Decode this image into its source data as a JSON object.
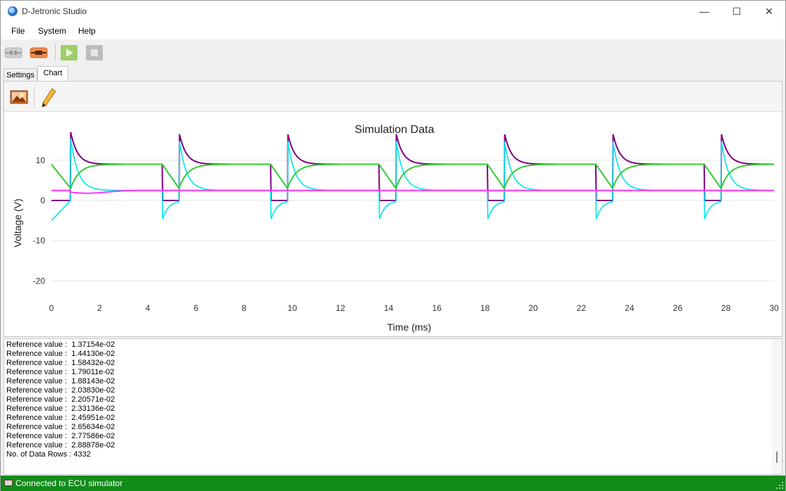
{
  "app": {
    "title": "D-Jetronic Studio"
  },
  "window_controls": {
    "minimize": "—",
    "maximize": "☐",
    "close": "✕"
  },
  "menu": {
    "items": [
      "File",
      "System",
      "Help"
    ]
  },
  "toolbar": {
    "buttons": [
      {
        "icon": "disconnect-icon",
        "enabled": false
      },
      {
        "icon": "connect-icon",
        "enabled": true
      },
      {
        "icon": "play-icon",
        "enabled": true
      },
      {
        "icon": "stop-icon",
        "enabled": false
      }
    ]
  },
  "tabs": {
    "items": [
      "Settings",
      "Chart"
    ],
    "active": "Chart"
  },
  "chart_toolbar": {
    "buttons": [
      {
        "icon": "image-icon"
      },
      {
        "icon": "pencil-icon"
      }
    ]
  },
  "chart_data": {
    "type": "line",
    "title": "Simulation Data",
    "xlabel": "Time (ms)",
    "ylabel": "Voltage (V)",
    "xlim": [
      0,
      30
    ],
    "ylim": [
      -25,
      18
    ],
    "xticks": [
      0,
      2,
      4,
      6,
      8,
      10,
      12,
      14,
      16,
      18,
      20,
      22,
      24,
      26,
      28,
      30
    ],
    "yticks": [
      10,
      0,
      -10,
      -20
    ],
    "grid": true,
    "legend": "none",
    "pulse_starts": [
      0.8,
      5.3,
      9.8,
      14.3,
      18.8,
      23.3,
      27.8
    ],
    "series": [
      {
        "color": "#800080",
        "description_points": [
          [
            0,
            0
          ],
          [
            0.75,
            0
          ],
          [
            0.8,
            17
          ],
          [
            1.5,
            10
          ],
          [
            2,
            9
          ],
          [
            4.6,
            9
          ],
          [
            4.6,
            0
          ]
        ]
      },
      {
        "color": "#00e5ee",
        "description_points": [
          [
            0,
            -5
          ],
          [
            0.8,
            15.5
          ],
          [
            1.5,
            5
          ],
          [
            2,
            2.5
          ]
        ]
      },
      {
        "color": "#33cc33",
        "description_points": [
          [
            0,
            9
          ],
          [
            0.8,
            3
          ],
          [
            1.8,
            9
          ]
        ]
      },
      {
        "color": "#ff33ff",
        "description_points": [
          [
            0,
            2.5
          ],
          [
            1.5,
            1.8
          ],
          [
            4,
            2.5
          ],
          [
            30,
            2.5
          ]
        ]
      }
    ],
    "colors": {
      "purple": "#800080",
      "cyan": "#00e5ee",
      "green": "#33cc33",
      "magenta": "#ff33ff"
    }
  },
  "log": {
    "lines": [
      "Reference value :  1.37154e-02",
      "Reference value :  1.44130e-02",
      "Reference value :  1.58432e-02",
      "Reference value :  1.79011e-02",
      "Reference value :  1.88143e-02",
      "Reference value :  2.03830e-02",
      "Reference value :  2.20571e-02",
      "Reference value :  2.33136e-02",
      "Reference value :  2.45951e-02",
      "Reference value :  2.65634e-02",
      "Reference value :  2.77586e-02",
      "Reference value :  2.88878e-02",
      "No. of Data Rows : 4332"
    ]
  },
  "status": {
    "text": "Connected to ECU simulator",
    "color": "#118c1a"
  }
}
